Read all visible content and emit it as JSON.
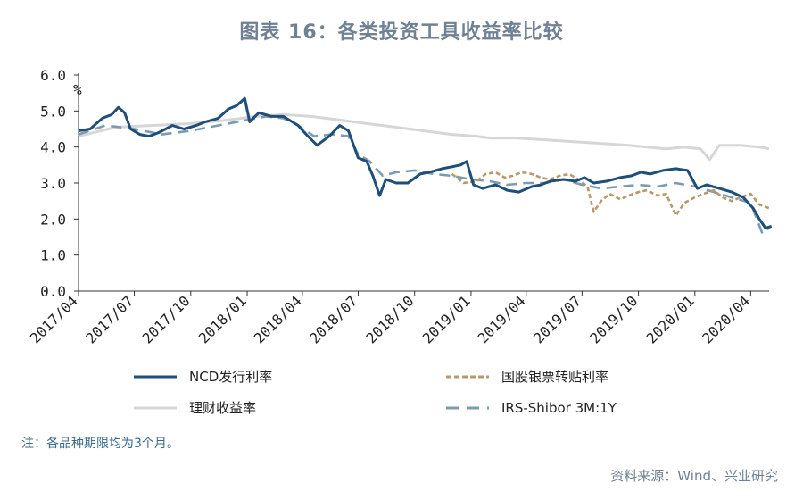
{
  "title": "图表 16：各类投资工具收益率比较",
  "note": "注：各品种期限均为3个月。",
  "source": "资料来源：Wind、兴业研究",
  "chart_data": {
    "type": "line",
    "unit_label": "%",
    "ylim": [
      0,
      6
    ],
    "yticks": [
      "0.0",
      "1.0",
      "2.0",
      "3.0",
      "4.0",
      "5.0",
      "6.0"
    ],
    "xlim": [
      "2017-04",
      "2020-05"
    ],
    "xticks": [
      "2017/04",
      "2017/07",
      "2017/10",
      "2018/01",
      "2018/04",
      "2018/07",
      "2018/10",
      "2019/01",
      "2019/04",
      "2019/07",
      "2019/10",
      "2020/01",
      "2020/04"
    ],
    "grid": false,
    "legend_placement": "bottom",
    "series": [
      {
        "name": "NCD发行利率",
        "color": "#1f4e79",
        "style": "solid",
        "x": [
          "2017-04-01",
          "2017-04-20",
          "2017-05-10",
          "2017-05-25",
          "2017-06-05",
          "2017-06-15",
          "2017-06-25",
          "2017-07-10",
          "2017-07-25",
          "2017-08-10",
          "2017-09-01",
          "2017-09-20",
          "2017-10-10",
          "2017-10-25",
          "2017-11-15",
          "2017-12-01",
          "2017-12-15",
          "2017-12-28",
          "2018-01-05",
          "2018-01-20",
          "2018-02-10",
          "2018-03-01",
          "2018-03-25",
          "2018-04-10",
          "2018-04-25",
          "2018-05-15",
          "2018-06-01",
          "2018-06-15",
          "2018-07-01",
          "2018-07-15",
          "2018-07-25",
          "2018-08-05",
          "2018-08-15",
          "2018-09-01",
          "2018-09-20",
          "2018-10-10",
          "2018-10-25",
          "2018-11-15",
          "2018-12-01",
          "2018-12-15",
          "2018-12-25",
          "2019-01-05",
          "2019-01-20",
          "2019-02-10",
          "2019-03-01",
          "2019-03-20",
          "2019-04-10",
          "2019-04-25",
          "2019-05-10",
          "2019-06-01",
          "2019-06-20",
          "2019-07-05",
          "2019-07-20",
          "2019-08-10",
          "2019-09-01",
          "2019-09-20",
          "2019-10-05",
          "2019-10-20",
          "2019-11-10",
          "2019-12-01",
          "2019-12-20",
          "2020-01-05",
          "2020-01-20",
          "2020-02-10",
          "2020-03-01",
          "2020-03-20",
          "2020-04-05",
          "2020-04-15",
          "2020-04-25",
          "2020-05-05"
        ],
        "values": [
          4.45,
          4.5,
          4.8,
          4.9,
          5.1,
          4.95,
          4.5,
          4.35,
          4.3,
          4.4,
          4.6,
          4.5,
          4.6,
          4.7,
          4.8,
          5.05,
          5.15,
          5.35,
          4.7,
          4.95,
          4.85,
          4.85,
          4.6,
          4.3,
          4.05,
          4.3,
          4.6,
          4.45,
          3.7,
          3.6,
          3.2,
          2.65,
          3.1,
          3.0,
          3.0,
          3.25,
          3.3,
          3.4,
          3.45,
          3.5,
          3.6,
          2.95,
          2.85,
          2.95,
          2.8,
          2.75,
          2.9,
          2.95,
          3.05,
          3.1,
          3.05,
          3.15,
          3.0,
          3.05,
          3.15,
          3.2,
          3.3,
          3.25,
          3.35,
          3.4,
          3.35,
          2.85,
          2.95,
          2.85,
          2.75,
          2.6,
          2.3,
          2.0,
          1.75,
          1.8
        ]
      },
      {
        "name": "国股银票转贴利率",
        "color": "#b8996a",
        "style": "dotted",
        "x": [
          "2018-12-01",
          "2018-12-20",
          "2019-01-10",
          "2019-01-25",
          "2019-02-10",
          "2019-02-25",
          "2019-03-10",
          "2019-03-25",
          "2019-04-10",
          "2019-04-25",
          "2019-05-10",
          "2019-05-25",
          "2019-06-10",
          "2019-06-25",
          "2019-07-10",
          "2019-07-20",
          "2019-08-01",
          "2019-08-15",
          "2019-09-01",
          "2019-09-15",
          "2019-10-01",
          "2019-10-15",
          "2019-11-01",
          "2019-11-15",
          "2019-12-01",
          "2019-12-15",
          "2020-01-01",
          "2020-01-15",
          "2020-02-01",
          "2020-02-15",
          "2020-03-01",
          "2020-03-15",
          "2020-04-01",
          "2020-04-15",
          "2020-05-01"
        ],
        "values": [
          3.25,
          3.0,
          3.05,
          3.25,
          3.3,
          3.15,
          3.2,
          3.3,
          3.25,
          3.15,
          3.1,
          3.2,
          3.25,
          3.1,
          2.9,
          2.2,
          2.5,
          2.7,
          2.55,
          2.65,
          2.75,
          2.8,
          2.65,
          2.7,
          2.1,
          2.45,
          2.6,
          2.7,
          2.8,
          2.6,
          2.5,
          2.6,
          2.7,
          2.4,
          2.3
        ]
      },
      {
        "name": "理财收益率",
        "color": "#d6d6d6",
        "style": "solid",
        "x": [
          "2017-04-01",
          "2017-06-01",
          "2017-08-01",
          "2017-10-01",
          "2017-12-01",
          "2018-01-15",
          "2018-03-01",
          "2018-04-15",
          "2018-06-01",
          "2018-07-15",
          "2018-09-01",
          "2018-10-15",
          "2018-12-01",
          "2019-01-10",
          "2019-02-01",
          "2019-03-15",
          "2019-05-01",
          "2019-06-15",
          "2019-08-01",
          "2019-09-15",
          "2019-10-15",
          "2019-11-15",
          "2019-12-15",
          "2020-01-10",
          "2020-01-25",
          "2020-02-10",
          "2020-03-15",
          "2020-04-15",
          "2020-05-01"
        ],
        "values": [
          4.3,
          4.55,
          4.6,
          4.65,
          4.75,
          4.85,
          4.9,
          4.85,
          4.75,
          4.65,
          4.55,
          4.45,
          4.35,
          4.3,
          4.25,
          4.25,
          4.2,
          4.15,
          4.1,
          4.05,
          4.0,
          3.95,
          4.0,
          3.95,
          3.65,
          4.05,
          4.05,
          4.0,
          3.95
        ]
      },
      {
        "name": "IRS-Shibor 3M:1Y",
        "color": "#7b9bb3",
        "style": "dashed",
        "x": [
          "2017-04-01",
          "2017-05-15",
          "2017-07-01",
          "2017-08-15",
          "2017-10-01",
          "2017-11-15",
          "2018-01-01",
          "2018-02-01",
          "2018-03-01",
          "2018-03-25",
          "2018-04-20",
          "2018-05-20",
          "2018-06-15",
          "2018-07-01",
          "2018-07-20",
          "2018-08-10",
          "2018-09-01",
          "2018-10-01",
          "2018-11-01",
          "2018-12-01",
          "2019-01-01",
          "2019-02-01",
          "2019-03-01",
          "2019-04-01",
          "2019-05-01",
          "2019-06-01",
          "2019-07-01",
          "2019-08-01",
          "2019-09-01",
          "2019-10-01",
          "2019-11-01",
          "2019-12-01",
          "2020-01-01",
          "2020-02-01",
          "2020-03-01",
          "2020-04-01",
          "2020-04-20",
          "2020-05-01"
        ],
        "values": [
          4.35,
          4.6,
          4.5,
          4.35,
          4.45,
          4.6,
          4.75,
          4.85,
          4.8,
          4.6,
          4.3,
          4.35,
          4.3,
          3.8,
          3.6,
          3.2,
          3.3,
          3.35,
          3.25,
          3.2,
          3.1,
          3.05,
          2.95,
          3.0,
          3.0,
          3.1,
          2.95,
          2.85,
          2.9,
          2.95,
          2.9,
          3.0,
          2.9,
          2.75,
          2.6,
          2.45,
          1.6,
          1.75
        ]
      }
    ]
  }
}
